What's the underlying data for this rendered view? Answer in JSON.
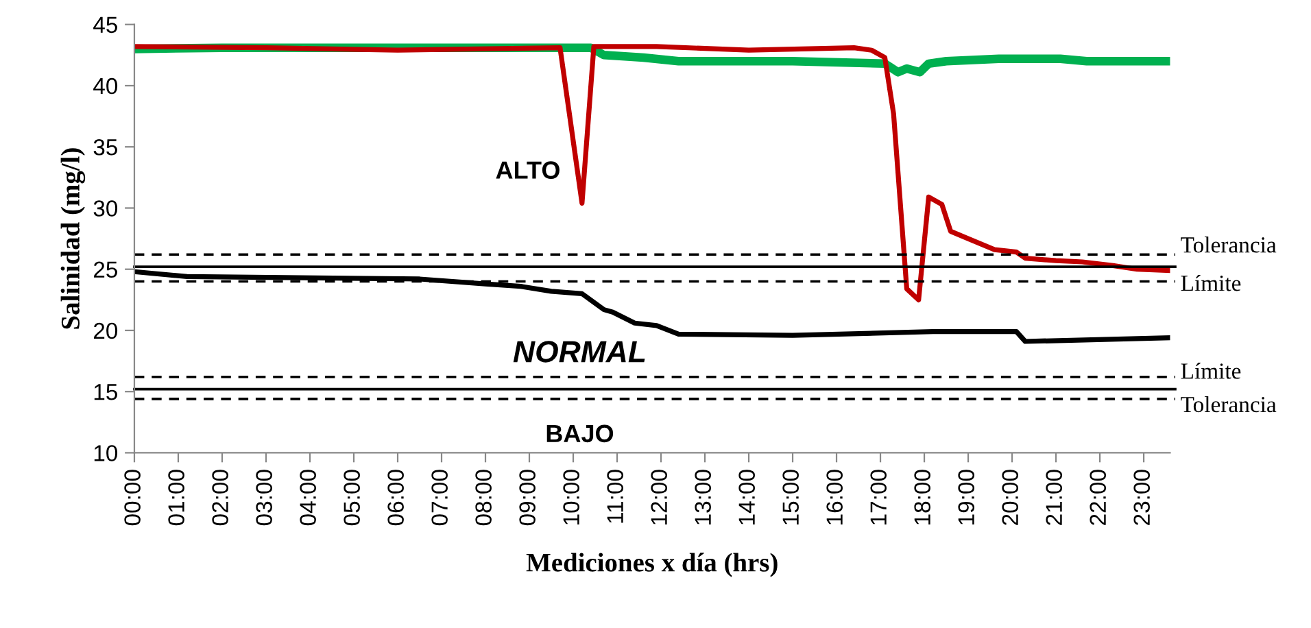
{
  "chart_data": {
    "type": "line",
    "xlabel": "Mediciones x día (hrs)",
    "ylabel": "Salinidad (mg/l)",
    "xlim": [
      0,
      23.6
    ],
    "ylim": [
      10,
      45
    ],
    "yticks": [
      10,
      15,
      20,
      25,
      30,
      35,
      40,
      45
    ],
    "xticks": [
      {
        "value": 0,
        "label": "00:00"
      },
      {
        "value": 1,
        "label": "01:00"
      },
      {
        "value": 2,
        "label": "02:00"
      },
      {
        "value": 3,
        "label": "03:00"
      },
      {
        "value": 4,
        "label": "04:00"
      },
      {
        "value": 5,
        "label": "05:00"
      },
      {
        "value": 6,
        "label": "06:00"
      },
      {
        "value": 7,
        "label": "07:00"
      },
      {
        "value": 8,
        "label": "08:00"
      },
      {
        "value": 9,
        "label": "09:00"
      },
      {
        "value": 10,
        "label": "10:00"
      },
      {
        "value": 11,
        "label": "11:00"
      },
      {
        "value": 12,
        "label": "12:00"
      },
      {
        "value": 13,
        "label": "13:00"
      },
      {
        "value": 14,
        "label": "14:00"
      },
      {
        "value": 15,
        "label": "15:00"
      },
      {
        "value": 16,
        "label": "16:00"
      },
      {
        "value": 17,
        "label": "17:00"
      },
      {
        "value": 18,
        "label": "18:00"
      },
      {
        "value": 19,
        "label": "19:00"
      },
      {
        "value": 20,
        "label": "20:00"
      },
      {
        "value": 21,
        "label": "21:00"
      },
      {
        "value": 22,
        "label": "22:00"
      },
      {
        "value": 23,
        "label": "23:00"
      }
    ],
    "grid": false,
    "marker": "none",
    "line_style": "solid",
    "series": [
      {
        "color": "#00b050",
        "x": [
          0,
          2,
          5,
          8,
          10.4,
          10.7,
          11.6,
          12.4,
          15,
          17.1,
          17.4,
          17.6,
          17.9,
          18.1,
          18.5,
          19.7,
          21.1,
          21.7,
          23.57
        ],
        "values": [
          43.0,
          43.1,
          43.1,
          43.1,
          43.1,
          42.5,
          42.3,
          42.0,
          42.0,
          41.8,
          41.1,
          41.4,
          41.1,
          41.8,
          42.0,
          42.2,
          42.2,
          42.0,
          42.0
        ]
      },
      {
        "color": "#c00000",
        "x": [
          0,
          3,
          6,
          9.7,
          10.2,
          10.47,
          11.9,
          14.0,
          16.4,
          16.8,
          17.1,
          17.3,
          17.6,
          17.87,
          18.1,
          18.4,
          18.6,
          19.0,
          19.6,
          20.1,
          20.3,
          21.0,
          21.6,
          22.3,
          22.85,
          23.57
        ],
        "values": [
          43.2,
          43.1,
          42.9,
          43.1,
          30.4,
          43.2,
          43.2,
          42.9,
          43.1,
          42.9,
          42.3,
          37.7,
          23.4,
          22.5,
          30.9,
          30.3,
          28.1,
          27.5,
          26.6,
          26.4,
          25.9,
          25.7,
          25.6,
          25.3,
          25.0,
          24.9
        ]
      },
      {
        "color": "#000000",
        "x": [
          0,
          1.2,
          3.8,
          6.5,
          8.0,
          8.8,
          9.5,
          10.2,
          10.7,
          10.9,
          11.4,
          11.9,
          12.4,
          15.0,
          18.2,
          20.1,
          20.3,
          23.57
        ],
        "values": [
          24.8,
          24.4,
          24.3,
          24.2,
          23.8,
          23.6,
          23.2,
          23.0,
          21.7,
          21.5,
          20.6,
          20.4,
          19.7,
          19.6,
          19.9,
          19.9,
          19.1,
          19.4
        ]
      }
    ],
    "ref_lines": [
      {
        "axis": "y",
        "value": 26.2,
        "label": "Tolerancia",
        "color": "#000000",
        "line_style": "dashed"
      },
      {
        "axis": "y",
        "value": 25.2,
        "color": "#000000",
        "line_style": "solid"
      },
      {
        "axis": "y",
        "value": 24,
        "label": "Límite",
        "color": "#000000",
        "line_style": "dashed"
      },
      {
        "axis": "y",
        "value": 16.2,
        "label": "Límite",
        "color": "#000000",
        "line_style": "dashed"
      },
      {
        "axis": "y",
        "value": 15.2,
        "color": "#000000",
        "line_style": "solid"
      },
      {
        "axis": "y",
        "value": 14.4,
        "label": "Tolerancia",
        "color": "#000000",
        "line_style": "dashed"
      }
    ],
    "annotations": [
      "ALTO",
      "NORMAL",
      "BAJO"
    ]
  }
}
